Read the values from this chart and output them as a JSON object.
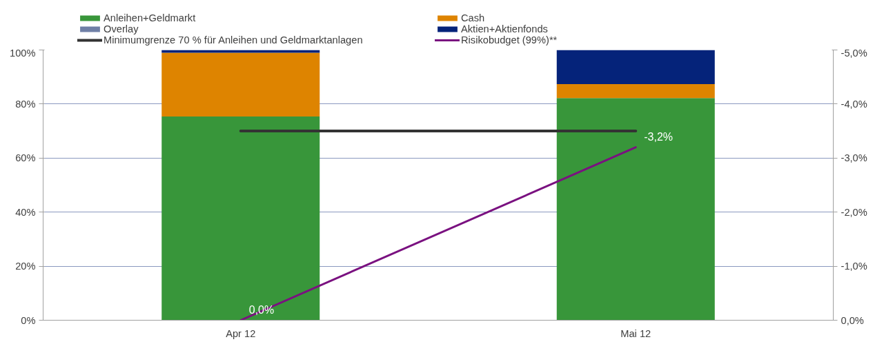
{
  "chart_data": {
    "type": "bar",
    "stacked": true,
    "categories": [
      "Apr 12",
      "Mai 12"
    ],
    "series": [
      {
        "name": "Anleihen+Geldmarkt",
        "color": "#38963a",
        "values": [
          75.4,
          82.2
        ]
      },
      {
        "name": "Cash",
        "color": "#de8400",
        "values": [
          23.6,
          5.2
        ]
      },
      {
        "name": "Overlay",
        "color": "#6f7fa6",
        "values": [
          0,
          0
        ]
      },
      {
        "name": "Aktien+Aktienfonds",
        "color": "#05237a",
        "values": [
          1.0,
          12.6
        ]
      },
      {
        "name": "Minimumgrenze 70 % für Anleihen und Geldmarktanlagen",
        "type": "line",
        "color": "#333333",
        "values": [
          70,
          70
        ]
      },
      {
        "name": "Risikobudget (99%)**",
        "type": "line",
        "axis": "y2",
        "color": "#7a1180",
        "values": [
          0,
          -3.2
        ],
        "value_labels": [
          "0,0%",
          "-3,2%"
        ]
      }
    ],
    "ylim": [
      0,
      100
    ],
    "yticks": [
      {
        "value": 0,
        "label": "0%"
      },
      {
        "value": 20,
        "label": "20%"
      },
      {
        "value": 40,
        "label": "40%"
      },
      {
        "value": 60,
        "label": "60%"
      },
      {
        "value": 80,
        "label": "80%"
      },
      {
        "value": 100,
        "label": "100%"
      }
    ],
    "y2lim": [
      0,
      -5
    ],
    "y2ticks": [
      {
        "value": 0,
        "label": "0,0%"
      },
      {
        "value": -1,
        "label": "-1,0%"
      },
      {
        "value": -2,
        "label": "-2,0%"
      },
      {
        "value": -3,
        "label": "-3,0%"
      },
      {
        "value": -4,
        "label": "-4,0%"
      },
      {
        "value": -5,
        "label": "-5,0%"
      }
    ],
    "grid": "y",
    "legend": "top"
  }
}
